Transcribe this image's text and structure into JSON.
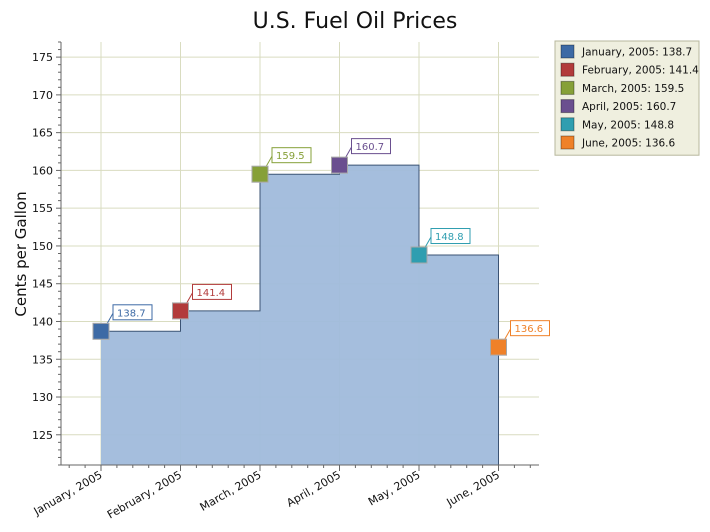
{
  "chart_data": {
    "type": "area",
    "style": "step",
    "title": "U.S. Fuel Oil Prices",
    "xlabel": "",
    "ylabel": "Cents per Gallon",
    "categories": [
      "January, 2005",
      "February, 2005",
      "March, 2005",
      "April, 2005",
      "May, 2005",
      "June, 2005"
    ],
    "values": [
      138.7,
      141.4,
      159.5,
      160.7,
      148.8,
      136.6
    ],
    "data_labels": [
      "138.7",
      "141.4",
      "159.5",
      "160.7",
      "148.8",
      "136.6"
    ],
    "ylim": [
      121,
      177
    ],
    "yticks": [
      125,
      130,
      135,
      140,
      145,
      150,
      155,
      160,
      165,
      170,
      175
    ],
    "ytick_labels": [
      "125",
      "130",
      "135",
      "140",
      "145",
      "150",
      "155",
      "160",
      "165",
      "170",
      "175"
    ],
    "grid": true,
    "legend_position": "top-right",
    "legend": [
      "January, 2005: 138.7",
      "February, 2005: 141.4",
      "March, 2005: 159.5",
      "April, 2005: 160.7",
      "May, 2005: 148.8",
      "June, 2005: 136.6"
    ],
    "point_colors": [
      "#3d6aa5",
      "#b23b3b",
      "#86a038",
      "#6a4f8f",
      "#2f9eb0",
      "#ef8129"
    ],
    "area_fill": "#a0badb",
    "area_stroke": "#3b5373",
    "grid_color": "#d9dcc0",
    "legend_background": "#efefdf"
  }
}
